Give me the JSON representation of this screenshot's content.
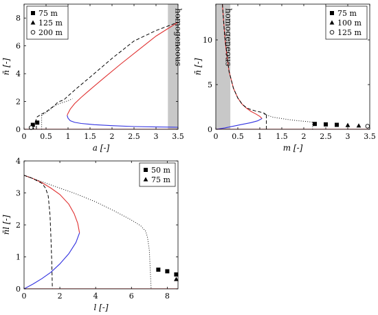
{
  "chart_data": [
    {
      "id": "a",
      "type": "line",
      "xlabel": "a [-]",
      "ylabel": "n̄ [-]",
      "xlim": [
        0,
        3.5
      ],
      "ylim": [
        0,
        9
      ],
      "xticks": [
        0,
        0.5,
        1,
        1.5,
        2,
        2.5,
        3,
        3.5
      ],
      "xtick_labels": [
        "0",
        "0.5",
        "1",
        "1.5",
        "2",
        "2.5",
        "3",
        "3.5"
      ],
      "yticks": [
        0,
        2,
        4,
        6,
        8
      ],
      "ytick_labels": [
        "0",
        "2",
        "4",
        "6",
        "8"
      ],
      "legend_position": "top-left",
      "band": {
        "x": [
          3.27,
          3.5
        ],
        "label": "homogeneous",
        "color": "#c8c8c8"
      },
      "series": [
        {
          "style": "upper",
          "color": "#e03030",
          "x": [
            0.98,
            1.0,
            1.05,
            1.15,
            1.3,
            1.5,
            1.8,
            2.2,
            2.6,
            3.0,
            3.3,
            3.5
          ],
          "y": [
            1.0,
            1.15,
            1.45,
            1.85,
            2.3,
            2.85,
            3.65,
            4.7,
            5.7,
            6.7,
            7.3,
            7.7
          ]
        },
        {
          "style": "lower",
          "color": "#3030e0",
          "x": [
            0.98,
            1.0,
            1.05,
            1.15,
            1.3,
            1.6,
            2.0,
            2.5,
            3.0,
            3.5
          ],
          "y": [
            1.0,
            0.8,
            0.62,
            0.5,
            0.42,
            0.33,
            0.26,
            0.2,
            0.17,
            0.15
          ]
        },
        {
          "style": "dashed",
          "color": "#000000",
          "x": [
            0.25,
            0.3,
            0.4,
            0.5,
            0.6,
            0.7,
            0.75,
            0.8,
            0.85,
            0.9,
            1.0,
            1.2,
            1.5,
            2.0,
            2.5,
            3.0,
            3.5
          ],
          "y": [
            0.5,
            0.9,
            1.1,
            1.25,
            1.5,
            1.72,
            1.9,
            2.0,
            2.05,
            2.1,
            2.4,
            2.95,
            3.75,
            5.1,
            6.35,
            7.1,
            7.7
          ]
        },
        {
          "style": "dotted",
          "color": "#000000",
          "x": [
            0.4,
            0.5,
            0.6,
            0.7,
            0.8,
            0.9,
            1.0,
            1.1
          ],
          "y": [
            1.0,
            1.2,
            1.45,
            1.7,
            1.85,
            1.95,
            2.05,
            2.2
          ]
        },
        {
          "style": "baseline",
          "color": "#e03030",
          "x": [
            0,
            3.5
          ],
          "y": [
            0,
            0
          ]
        }
      ],
      "vlines": [
        {
          "x": 0.28,
          "y": [
            0,
            0.75
          ],
          "style": "dashed"
        },
        {
          "x": 0.4,
          "y": [
            0,
            1.0
          ],
          "style": "dotted"
        }
      ],
      "markers": [
        {
          "name": "75 m",
          "shape": "square",
          "points": [
            [
              0.2,
              0.32
            ],
            [
              0.3,
              0.48
            ]
          ]
        },
        {
          "name": "125 m",
          "shape": "triangle",
          "points": [
            [
              0.18,
              0.15
            ]
          ]
        },
        {
          "name": "200 m",
          "shape": "circle",
          "points": [
            [
              0.16,
              0.12
            ]
          ]
        }
      ]
    },
    {
      "id": "m",
      "type": "line",
      "xlabel": "m [-]",
      "ylabel": "n̄ [-]",
      "xlim": [
        0,
        3.5
      ],
      "ylim": [
        0,
        14
      ],
      "xticks": [
        0,
        0.5,
        1,
        1.5,
        2,
        2.5,
        3,
        3.5
      ],
      "xtick_labels": [
        "0",
        "0.5",
        "1",
        "1.5",
        "2",
        "2.5",
        "3",
        "3.5"
      ],
      "yticks": [
        0,
        5,
        10
      ],
      "ytick_labels": [
        "0",
        "5",
        "10"
      ],
      "legend_position": "top-right",
      "band": {
        "x": [
          0,
          0.33
        ],
        "label": "homogeneous",
        "color": "#c8c8c8"
      },
      "series": [
        {
          "style": "upper",
          "color": "#e03030",
          "x": [
            0.15,
            0.18,
            0.22,
            0.3,
            0.4,
            0.5,
            0.6,
            0.7,
            0.8,
            0.9,
            1.0,
            1.05
          ],
          "y": [
            14,
            12.0,
            9.5,
            6.5,
            4.6,
            3.5,
            2.8,
            2.35,
            2.0,
            1.75,
            1.45,
            1.2
          ]
        },
        {
          "style": "lower",
          "color": "#3030e0",
          "x": [
            0,
            0.2,
            0.4,
            0.6,
            0.8,
            0.95,
            1.05
          ],
          "y": [
            0,
            0.15,
            0.35,
            0.55,
            0.75,
            0.95,
            1.2
          ]
        },
        {
          "style": "dashed",
          "color": "#000000",
          "x": [
            0.15,
            0.2,
            0.3,
            0.4,
            0.5,
            0.6,
            0.7,
            0.8,
            0.9,
            1.0,
            1.1,
            1.15
          ],
          "y": [
            14,
            10.5,
            6.5,
            4.6,
            3.5,
            2.8,
            2.4,
            2.2,
            2.05,
            1.95,
            1.8,
            1.6
          ]
        },
        {
          "style": "dotted",
          "color": "#000000",
          "x": [
            1.1,
            1.3,
            1.5,
            1.7,
            1.9,
            2.1,
            2.2
          ],
          "y": [
            1.7,
            1.35,
            1.2,
            1.05,
            0.95,
            0.85,
            0.8
          ]
        },
        {
          "style": "baseline",
          "color": "#e03030",
          "x": [
            0,
            3.5
          ],
          "y": [
            0,
            0
          ]
        }
      ],
      "vlines": [
        {
          "x": 1.15,
          "y": [
            0,
            1.6
          ],
          "style": "dashed"
        },
        {
          "x": 2.2,
          "y": [
            0,
            0.8
          ],
          "style": "dotted"
        }
      ],
      "markers": [
        {
          "name": "75 m",
          "shape": "square",
          "points": [
            [
              2.25,
              0.6
            ],
            [
              2.5,
              0.55
            ],
            [
              2.75,
              0.5
            ]
          ]
        },
        {
          "name": "100 m",
          "shape": "triangle",
          "points": [
            [
              3.0,
              0.45
            ],
            [
              3.25,
              0.4
            ]
          ]
        },
        {
          "name": "125 m",
          "shape": "circle",
          "points": [
            [
              3.45,
              0.35
            ]
          ]
        }
      ]
    },
    {
      "id": "l",
      "type": "line",
      "xlabel": "l [-]",
      "ylabel": "n̄l [-]",
      "xlim": [
        0,
        8.6
      ],
      "ylim": [
        0,
        4
      ],
      "xticks": [
        0,
        2,
        4,
        6,
        8
      ],
      "xtick_labels": [
        "0",
        "2",
        "4",
        "6",
        "8"
      ],
      "yticks": [
        0,
        1,
        2,
        3,
        4
      ],
      "ytick_labels": [
        "0",
        "1",
        "2",
        "3",
        "4"
      ],
      "legend_position": "top-right",
      "series": [
        {
          "style": "upper",
          "color": "#e03030",
          "x": [
            0,
            0.5,
            1.0,
            1.5,
            2.0,
            2.5,
            2.8,
            3.0,
            3.1
          ],
          "y": [
            3.55,
            3.45,
            3.32,
            3.15,
            2.95,
            2.65,
            2.35,
            2.05,
            1.75
          ]
        },
        {
          "style": "lower",
          "color": "#3030e0",
          "x": [
            0,
            0.5,
            1.0,
            1.5,
            2.0,
            2.5,
            2.9,
            3.1
          ],
          "y": [
            0,
            0.15,
            0.32,
            0.52,
            0.78,
            1.1,
            1.45,
            1.75
          ]
        },
        {
          "style": "dashed",
          "color": "#000000",
          "x": [
            0,
            0.5,
            1.0,
            1.2,
            1.35,
            1.45,
            1.5,
            1.55,
            1.58
          ],
          "y": [
            3.55,
            3.45,
            3.3,
            3.15,
            2.9,
            2.3,
            1.6,
            0.8,
            0
          ]
        },
        {
          "style": "dotted",
          "color": "#000000",
          "x": [
            0,
            1.0,
            2.0,
            3.0,
            4.0,
            5.0,
            6.0,
            6.5,
            6.8,
            6.9,
            7.0,
            7.05,
            7.1
          ],
          "y": [
            3.55,
            3.35,
            3.15,
            2.95,
            2.72,
            2.45,
            2.15,
            1.98,
            1.8,
            1.6,
            1.2,
            0.6,
            0
          ]
        },
        {
          "style": "baseline",
          "color": "#e03030",
          "x": [
            0,
            8.6
          ],
          "y": [
            0,
            0
          ]
        }
      ],
      "vlines": [],
      "markers": [
        {
          "name": "50 m",
          "shape": "square",
          "points": [
            [
              7.5,
              0.6
            ],
            [
              8.0,
              0.55
            ],
            [
              8.5,
              0.45
            ]
          ]
        },
        {
          "name": "75 m",
          "shape": "triangle",
          "points": [
            [
              8.5,
              0.3
            ]
          ]
        }
      ]
    }
  ]
}
